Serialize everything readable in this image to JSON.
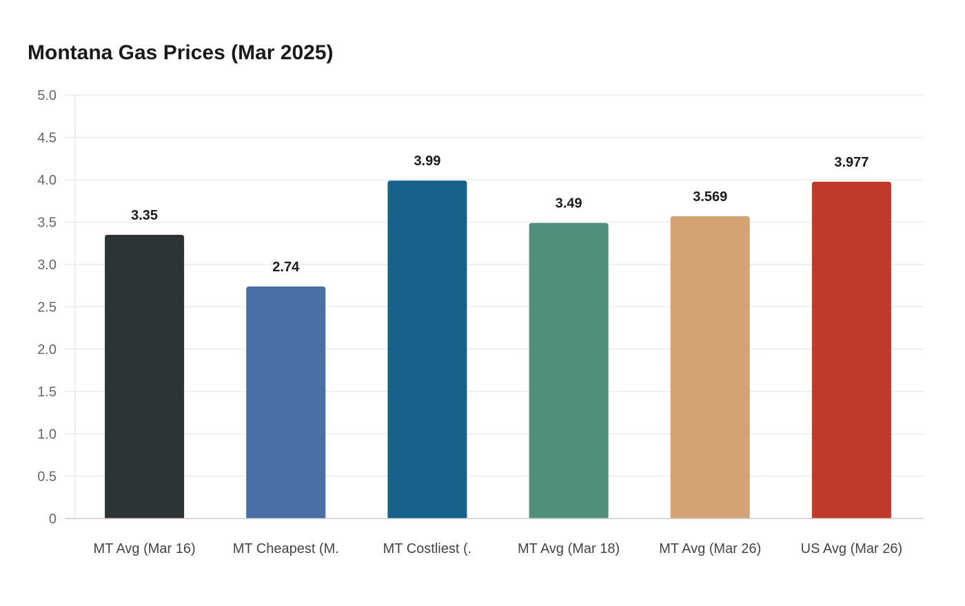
{
  "chart_data": {
    "type": "bar",
    "title": "Montana Gas Prices (Mar 2025)",
    "xlabel": "",
    "ylabel": "",
    "ylim": [
      0,
      5.0
    ],
    "yticks": [
      "0",
      "0.5",
      "1.0",
      "1.5",
      "2.0",
      "2.5",
      "3.0",
      "3.5",
      "4.0",
      "4.5",
      "5.0"
    ],
    "grid": true,
    "categories": [
      "MT Avg (Mar 16)",
      "MT Cheapest (M.",
      "MT Costliest (.",
      "MT Avg (Mar 18)",
      "MT Avg (Mar 26)",
      "US Avg (Mar 26)"
    ],
    "values": [
      3.35,
      2.74,
      3.99,
      3.49,
      3.569,
      3.977
    ],
    "value_labels": [
      "3.35",
      "2.74",
      "3.99",
      "3.49",
      "3.569",
      "3.977"
    ],
    "colors": [
      "#2d3436",
      "#4a6fa5",
      "#17628a",
      "#4f8f7c",
      "#d4a373",
      "#c0392b"
    ]
  }
}
